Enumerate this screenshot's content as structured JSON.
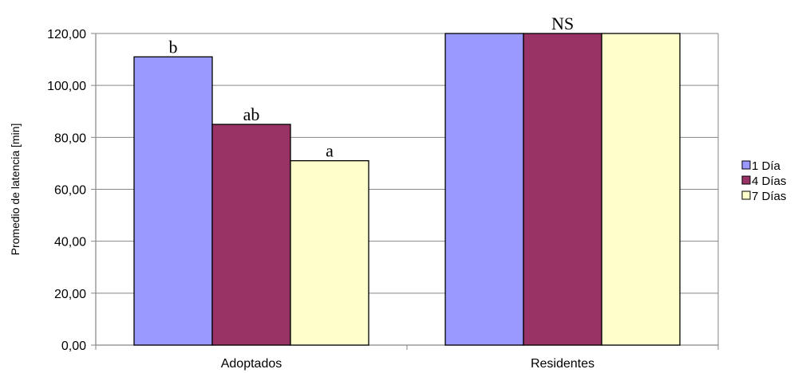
{
  "chart_data": {
    "type": "bar",
    "title": "",
    "xlabel": "",
    "ylabel": "Promedio de latencia [min]",
    "ylim": [
      0,
      120
    ],
    "yticks": [
      0,
      20,
      40,
      60,
      80,
      100,
      120
    ],
    "ytick_labels": [
      "0,00",
      "20,00",
      "40,00",
      "60,00",
      "80,00",
      "100,00",
      "120,00"
    ],
    "categories": [
      "Adoptados",
      "Residentes"
    ],
    "series": [
      {
        "name": "1 Día",
        "values": [
          111,
          120
        ],
        "color": "#9999ff"
      },
      {
        "name": "4 Días",
        "values": [
          85,
          120
        ],
        "color": "#993366"
      },
      {
        "name": "7 Días",
        "values": [
          71,
          120
        ],
        "color": "#ffffcc"
      }
    ],
    "annotations": [
      {
        "text": "b",
        "category": 0,
        "series": 0
      },
      {
        "text": "ab",
        "category": 0,
        "series": 1
      },
      {
        "text": "a",
        "category": 0,
        "series": 2
      },
      {
        "text": "NS",
        "category": 1,
        "series": 1
      }
    ],
    "legend_position": "right",
    "grid": true,
    "grid_color": "#868686"
  }
}
